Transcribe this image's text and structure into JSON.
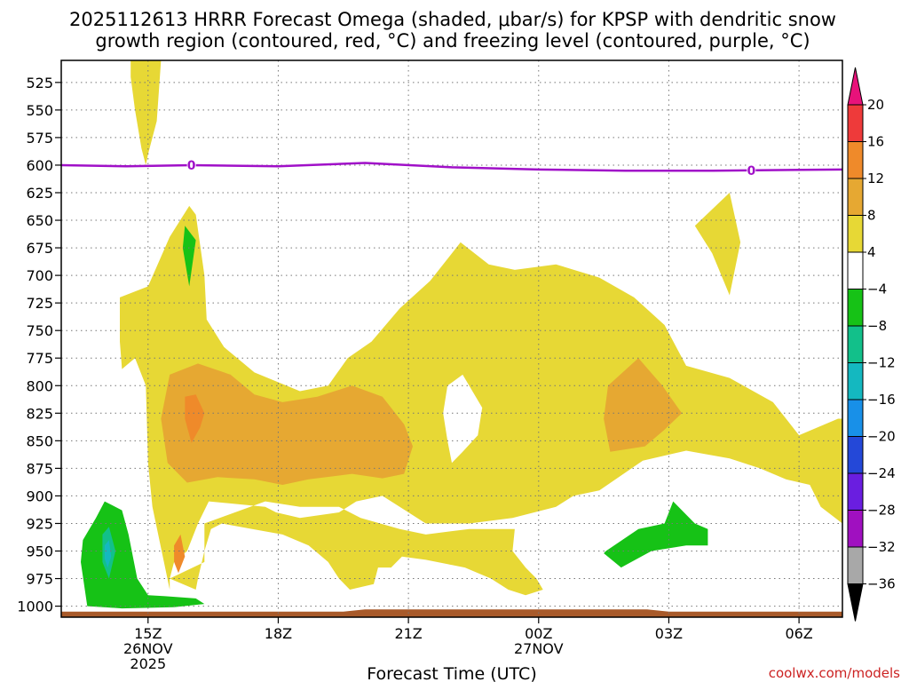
{
  "title_line1": "2025112613 HRRR Forecast Omega (shaded, μbar/s) for KPSP with dendritic snow",
  "title_line2": "growth region (contoured, red, °C) and freezing level (contoured, purple, °C)",
  "credit": "coolwx.com/models",
  "chart_data": {
    "type": "heatmap",
    "title": "2025112613 HRRR Forecast Omega (shaded, μbar/s) for KPSP with dendritic snow growth region (contoured, red, °C) and freezing level (contoured, purple, °C)",
    "xlabel": "Forecast Time (UTC)",
    "ylabel": "",
    "x_range_hours": [
      13,
      31
    ],
    "y_range_hPa": [
      505,
      1010
    ],
    "y_axis": "pressure (hPa), inverted",
    "grid": true,
    "x_ticks": [
      {
        "hour": 15,
        "label": "15Z",
        "sub1": "26NOV",
        "sub2": "2025"
      },
      {
        "hour": 18,
        "label": "18Z",
        "sub1": "",
        "sub2": ""
      },
      {
        "hour": 21,
        "label": "21Z",
        "sub1": "",
        "sub2": ""
      },
      {
        "hour": 24,
        "label": "00Z",
        "sub1": "27NOV",
        "sub2": ""
      },
      {
        "hour": 27,
        "label": "03Z",
        "sub1": "",
        "sub2": ""
      },
      {
        "hour": 30,
        "label": "06Z",
        "sub1": "",
        "sub2": ""
      }
    ],
    "y_ticks": [
      525,
      550,
      575,
      600,
      625,
      650,
      675,
      700,
      725,
      750,
      775,
      800,
      825,
      850,
      875,
      900,
      925,
      950,
      975,
      1000
    ],
    "colorbar": {
      "unit": "μbar/s",
      "labels": [
        "20",
        "16",
        "12",
        "8",
        "4",
        "−4",
        "−8",
        "−12",
        "−16",
        "−20",
        "−24",
        "−28",
        "−32",
        "−36"
      ],
      "levels": [
        {
          "range": [
            20,
            24
          ],
          "color": "#e8127a"
        },
        {
          "range": [
            16,
            20
          ],
          "color": "#ee3a3a"
        },
        {
          "range": [
            12,
            16
          ],
          "color": "#ef8a2a"
        },
        {
          "range": [
            8,
            12
          ],
          "color": "#e6a832"
        },
        {
          "range": [
            4,
            8
          ],
          "color": "#e7d835"
        },
        {
          "range": [
            -4,
            4
          ],
          "color": "#ffffff"
        },
        {
          "range": [
            -8,
            -4
          ],
          "color": "#16c216"
        },
        {
          "range": [
            -12,
            -8
          ],
          "color": "#12c08a"
        },
        {
          "range": [
            -16,
            -12
          ],
          "color": "#14b8c0"
        },
        {
          "range": [
            -20,
            -16
          ],
          "color": "#1890e8"
        },
        {
          "range": [
            -24,
            -20
          ],
          "color": "#2448d8"
        },
        {
          "range": [
            -28,
            -24
          ],
          "color": "#6a1ee0"
        },
        {
          "range": [
            -32,
            -28
          ],
          "color": "#a010c0"
        },
        {
          "range": [
            -36,
            -32
          ],
          "color": "#a8a8a8"
        },
        {
          "range": [
            -40,
            -36
          ],
          "color": "#000000"
        }
      ]
    },
    "freezing_level": {
      "color": "#a010c8",
      "label": "0",
      "points": [
        [
          13,
          600
        ],
        [
          14.5,
          601
        ],
        [
          16,
          600
        ],
        [
          18,
          601
        ],
        [
          20,
          598
        ],
        [
          22,
          602
        ],
        [
          24,
          604
        ],
        [
          26,
          605
        ],
        [
          28,
          605
        ],
        [
          31,
          604
        ]
      ],
      "label_hours": [
        16,
        28.9
      ]
    },
    "shaded_regions": [
      {
        "level": "4 to 8",
        "color": "#e7d835",
        "points": [
          [
            14.6,
            505
          ],
          [
            15.3,
            505
          ],
          [
            15.2,
            560
          ],
          [
            15.0,
            590
          ],
          [
            14.95,
            600
          ],
          [
            14.85,
            585
          ],
          [
            14.7,
            550
          ],
          [
            14.6,
            520
          ]
        ]
      },
      {
        "level": "4 to 8",
        "color": "#e7d835",
        "points": [
          [
            15.0,
            710
          ],
          [
            15.5,
            665
          ],
          [
            15.95,
            637
          ],
          [
            16.1,
            645
          ],
          [
            16.3,
            700
          ],
          [
            16.35,
            740
          ],
          [
            16.75,
            765
          ],
          [
            17.45,
            788
          ],
          [
            18.5,
            805
          ],
          [
            19.15,
            800
          ],
          [
            19.6,
            775
          ],
          [
            20.15,
            760
          ],
          [
            20.8,
            730
          ],
          [
            21.5,
            705
          ],
          [
            22.2,
            670
          ],
          [
            22.85,
            690
          ],
          [
            23.45,
            695
          ],
          [
            24.4,
            690
          ],
          [
            25.4,
            702
          ],
          [
            26.2,
            720
          ],
          [
            26.9,
            745
          ],
          [
            27.4,
            782
          ],
          [
            28.4,
            793
          ],
          [
            29.4,
            815
          ],
          [
            30.0,
            845
          ],
          [
            30.9,
            830
          ],
          [
            31.0,
            830
          ],
          [
            31.0,
            925
          ],
          [
            30.5,
            910
          ],
          [
            30.25,
            890
          ],
          [
            29.7,
            885
          ],
          [
            29.1,
            875
          ],
          [
            28.4,
            866
          ],
          [
            27.4,
            859
          ],
          [
            26.4,
            868
          ],
          [
            25.4,
            895
          ],
          [
            24.8,
            900
          ],
          [
            24.4,
            910
          ],
          [
            23.4,
            920
          ],
          [
            22.4,
            925
          ],
          [
            21.4,
            925
          ],
          [
            20.8,
            910
          ],
          [
            20.4,
            900
          ],
          [
            19.8,
            905
          ],
          [
            19.4,
            915
          ],
          [
            18.5,
            920
          ],
          [
            17.95,
            915
          ],
          [
            17.7,
            910
          ],
          [
            16.4,
            905
          ],
          [
            16.15,
            925
          ],
          [
            15.9,
            950
          ],
          [
            15.6,
            960
          ],
          [
            15.5,
            975
          ],
          [
            16.1,
            985
          ],
          [
            16.15,
            975
          ],
          [
            16.3,
            950
          ],
          [
            16.45,
            930
          ],
          [
            16.7,
            925
          ],
          [
            17.4,
            930
          ],
          [
            18.1,
            935
          ],
          [
            18.7,
            945
          ],
          [
            19.15,
            960
          ],
          [
            19.4,
            975
          ],
          [
            19.65,
            985
          ],
          [
            20.2,
            980
          ],
          [
            20.3,
            965
          ],
          [
            20.6,
            965
          ],
          [
            20.85,
            955
          ],
          [
            21.4,
            958
          ],
          [
            22.3,
            965
          ],
          [
            22.9,
            975
          ],
          [
            23.3,
            985
          ],
          [
            23.7,
            990
          ],
          [
            24.1,
            985
          ],
          [
            23.95,
            975
          ],
          [
            23.7,
            965
          ],
          [
            23.4,
            950
          ],
          [
            23.45,
            930
          ],
          [
            22.4,
            930
          ],
          [
            21.4,
            935
          ],
          [
            20.8,
            930
          ],
          [
            19.9,
            920
          ],
          [
            19.4,
            910
          ],
          [
            18.95,
            910
          ],
          [
            18.5,
            910
          ],
          [
            17.7,
            905
          ],
          [
            16.3,
            925
          ],
          [
            16.3,
            960
          ],
          [
            15.5,
            975
          ],
          [
            15.5,
            985
          ],
          [
            15.1,
            910
          ],
          [
            15.0,
            870
          ],
          [
            14.95,
            800
          ],
          [
            14.7,
            775
          ],
          [
            14.4,
            785
          ],
          [
            14.35,
            760
          ],
          [
            14.35,
            720
          ]
        ]
      },
      {
        "level": "4 to 8",
        "color": "#e7d835",
        "points": [
          [
            28.4,
            625
          ],
          [
            28.65,
            670
          ],
          [
            28.4,
            718
          ],
          [
            28.0,
            680
          ],
          [
            27.6,
            655
          ]
        ]
      },
      {
        "level": "-4 to 4",
        "color": "#ffffff",
        "points": [
          [
            21.9,
            800
          ],
          [
            22.25,
            790
          ],
          [
            22.55,
            810
          ],
          [
            22.7,
            820
          ],
          [
            22.6,
            845
          ],
          [
            22.25,
            860
          ],
          [
            22.0,
            870
          ],
          [
            21.9,
            850
          ],
          [
            21.8,
            825
          ]
        ]
      },
      {
        "level": "8 to 12",
        "color": "#e6a832",
        "points": [
          [
            15.5,
            790
          ],
          [
            16.15,
            780
          ],
          [
            16.9,
            790
          ],
          [
            17.45,
            808
          ],
          [
            18.1,
            815
          ],
          [
            18.9,
            810
          ],
          [
            19.7,
            800
          ],
          [
            20.4,
            810
          ],
          [
            20.9,
            835
          ],
          [
            21.1,
            855
          ],
          [
            20.9,
            880
          ],
          [
            20.4,
            884
          ],
          [
            19.7,
            880
          ],
          [
            18.7,
            885
          ],
          [
            18.1,
            890
          ],
          [
            17.45,
            885
          ],
          [
            16.6,
            883
          ],
          [
            15.9,
            888
          ],
          [
            15.45,
            870
          ],
          [
            15.3,
            830
          ]
        ]
      },
      {
        "level": "8 to 12",
        "color": "#e6a832",
        "points": [
          [
            25.6,
            800
          ],
          [
            26.3,
            775
          ],
          [
            26.85,
            800
          ],
          [
            27.3,
            825
          ],
          [
            26.9,
            840
          ],
          [
            26.45,
            855
          ],
          [
            25.65,
            860
          ],
          [
            25.5,
            830
          ]
        ]
      },
      {
        "level": "12 to 16",
        "color": "#ef8a2a",
        "points": [
          [
            15.85,
            810
          ],
          [
            16.1,
            808
          ],
          [
            16.3,
            825
          ],
          [
            16.2,
            838
          ],
          [
            16.0,
            852
          ],
          [
            15.85,
            830
          ]
        ]
      },
      {
        "level": "12 to 16",
        "color": "#ef8a2a",
        "points": [
          [
            15.6,
            945
          ],
          [
            15.75,
            935
          ],
          [
            15.85,
            955
          ],
          [
            15.7,
            970
          ],
          [
            15.6,
            960
          ]
        ]
      },
      {
        "level": "-8 to -4",
        "color": "#16c216",
        "points": [
          [
            15.85,
            655
          ],
          [
            16.1,
            668
          ],
          [
            15.95,
            710
          ],
          [
            15.8,
            675
          ]
        ]
      },
      {
        "level": "-8 to -4",
        "color": "#16c216",
        "points": [
          [
            13.5,
            940
          ],
          [
            13.8,
            920
          ],
          [
            14.0,
            905
          ],
          [
            14.4,
            913
          ],
          [
            14.55,
            935
          ],
          [
            14.75,
            975
          ],
          [
            15.0,
            990
          ],
          [
            15.4,
            991
          ],
          [
            16.1,
            993
          ],
          [
            16.3,
            998
          ],
          [
            15.6,
            1001
          ],
          [
            14.4,
            1002
          ],
          [
            13.6,
            1000
          ],
          [
            13.45,
            960
          ]
        ]
      },
      {
        "level": "-12 to -8",
        "color": "#12c08a",
        "points": [
          [
            13.95,
            935
          ],
          [
            14.1,
            928
          ],
          [
            14.25,
            950
          ],
          [
            14.1,
            975
          ],
          [
            13.95,
            960
          ]
        ]
      },
      {
        "level": "-16 to -12",
        "color": "#14b8c0",
        "points": [
          [
            14.0,
            945
          ],
          [
            14.1,
            940
          ],
          [
            14.15,
            955
          ],
          [
            14.07,
            965
          ],
          [
            14.0,
            957
          ]
        ]
      },
      {
        "level": "-8 to -4",
        "color": "#16c216",
        "points": [
          [
            25.55,
            950
          ],
          [
            26.3,
            930
          ],
          [
            26.9,
            925
          ],
          [
            27.1,
            905
          ],
          [
            27.6,
            925
          ],
          [
            27.9,
            930
          ],
          [
            27.9,
            945
          ],
          [
            27.4,
            945
          ],
          [
            26.6,
            950
          ],
          [
            25.9,
            965
          ],
          [
            25.5,
            952
          ]
        ]
      }
    ],
    "ground_band": {
      "color": "#a85a2a",
      "top_hPa_left": 1005,
      "top_hPa_mid": 1003,
      "bottom_hPa": 1010
    }
  }
}
